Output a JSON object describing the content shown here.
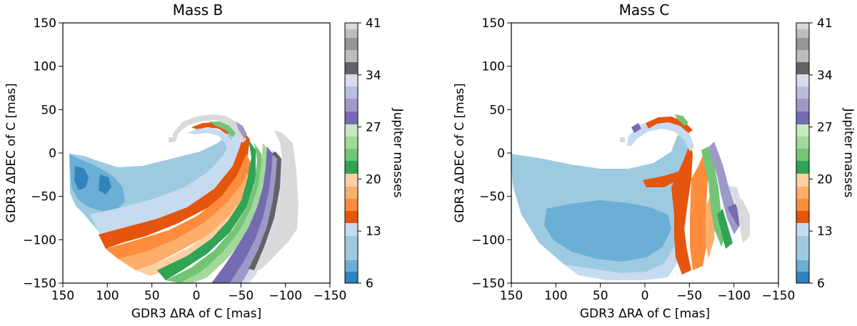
{
  "chart_data": [
    {
      "type": "heatmap",
      "title": "Mass B",
      "xlabel": "GDR3 ΔRA of C [mas]",
      "ylabel": "GDR3 ΔDEC of C [mas]",
      "xlim": [
        150,
        -150
      ],
      "ylim": [
        -150,
        150
      ],
      "xticks": [
        "150",
        "100",
        "50",
        "0",
        "−50",
        "−100",
        "−150"
      ],
      "yticks": [
        "150",
        "100",
        "50",
        "0",
        "−50",
        "−100",
        "−150"
      ],
      "colorbar": {
        "label": "Jupiter masses",
        "range": [
          6,
          41
        ],
        "ticks": [
          "41",
          "34",
          "27",
          "20",
          "13",
          "6"
        ]
      },
      "bands": [
        {
          "mass_min": 6,
          "mass_max": 10,
          "ra_outer": 130,
          "ra_inner": 30,
          "dec_range": [
            -60,
            0
          ],
          "description": "blue wing"
        },
        {
          "mass_min": 10,
          "mass_max": 13,
          "ra_outer": 110,
          "ra_inner": -40,
          "dec_range": [
            -80,
            40
          ]
        },
        {
          "mass_min": 13,
          "mass_max": 20,
          "ra_outer": 110,
          "ra_inner": 10,
          "dec_range": [
            -135,
            -60
          ]
        },
        {
          "mass_min": 20,
          "mass_max": 27,
          "ra_outer": 40,
          "ra_inner": -35,
          "dec_range": [
            -145,
            35
          ]
        },
        {
          "mass_min": 27,
          "mass_max": 34,
          "ra_outer": -20,
          "ra_inner": -55,
          "dec_range": [
            -145,
            30
          ]
        },
        {
          "mass_min": 34,
          "mass_max": 41,
          "ra_outer": -50,
          "ra_inner": -115,
          "dec_range": [
            -125,
            40
          ]
        }
      ]
    },
    {
      "type": "heatmap",
      "title": "Mass C",
      "xlabel": "GDR3 ΔRA of C [mas]",
      "ylabel": "GDR3 ΔDEC of C [mas]",
      "xlim": [
        150,
        -150
      ],
      "ylim": [
        -150,
        150
      ],
      "xticks": [
        "150",
        "100",
        "50",
        "0",
        "−50",
        "−100",
        "−150"
      ],
      "yticks": [
        "150",
        "100",
        "50",
        "0",
        "−50",
        "−100",
        "−150"
      ],
      "colorbar": {
        "label": "Jupiter masses",
        "range": [
          6,
          41
        ],
        "ticks": [
          "41",
          "34",
          "27",
          "20",
          "13",
          "6"
        ]
      },
      "bands": [
        {
          "mass_min": 10,
          "mass_max": 13,
          "ra_outer": 145,
          "ra_inner": -60,
          "dec_range": [
            -145,
            40
          ]
        },
        {
          "mass_min": 8,
          "mass_max": 10,
          "ra_outer": 90,
          "ra_inner": -30,
          "dec_range": [
            -125,
            -50
          ],
          "description": "inner blue core"
        },
        {
          "mass_min": 13,
          "mass_max": 20,
          "ra_outer": -40,
          "ra_inner": -80,
          "dec_range": [
            -140,
            40
          ]
        },
        {
          "mass_min": 20,
          "mass_max": 34,
          "ra_outer": -65,
          "ra_inner": -110,
          "dec_range": [
            -110,
            20
          ]
        },
        {
          "mass_min": 34,
          "mass_max": 41,
          "ra_outer": -90,
          "ra_inner": -115,
          "dec_range": [
            -100,
            -60
          ]
        }
      ]
    }
  ]
}
